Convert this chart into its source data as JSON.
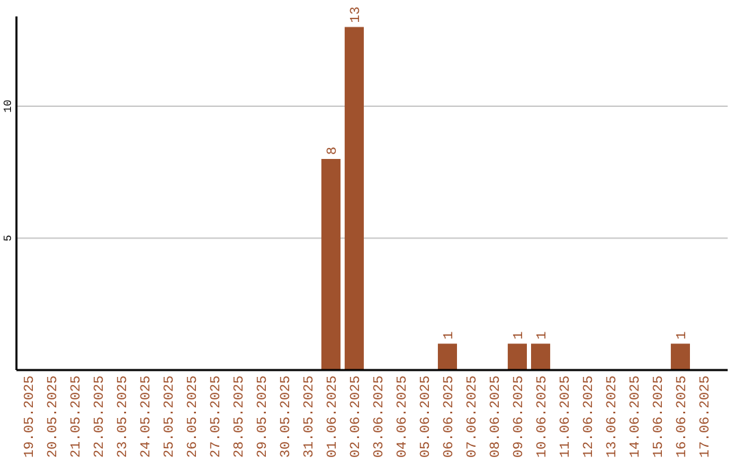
{
  "chart_data": {
    "type": "bar",
    "categories": [
      "19.05.2025",
      "20.05.2025",
      "21.05.2025",
      "22.05.2025",
      "23.05.2025",
      "24.05.2025",
      "25.05.2025",
      "26.05.2025",
      "27.05.2025",
      "28.05.2025",
      "29.05.2025",
      "30.05.2025",
      "31.05.2025",
      "01.06.2025",
      "02.06.2025",
      "03.06.2025",
      "04.06.2025",
      "05.06.2025",
      "06.06.2025",
      "07.06.2025",
      "08.06.2025",
      "09.06.2025",
      "10.06.2025",
      "11.06.2025",
      "12.06.2025",
      "13.06.2025",
      "14.06.2025",
      "15.06.2025",
      "16.06.2025",
      "17.06.2025"
    ],
    "values": [
      0,
      0,
      0,
      0,
      0,
      0,
      0,
      0,
      0,
      0,
      0,
      0,
      0,
      8,
      13,
      0,
      0,
      0,
      1,
      0,
      0,
      1,
      1,
      0,
      0,
      0,
      0,
      0,
      1,
      0
    ],
    "value_labels": [
      null,
      null,
      null,
      null,
      null,
      null,
      null,
      null,
      null,
      null,
      null,
      null,
      null,
      "8",
      "13",
      null,
      null,
      null,
      "1",
      null,
      null,
      "1",
      "1",
      null,
      null,
      null,
      null,
      null,
      "1",
      null
    ],
    "color": "#a0522d",
    "ylim": [
      0,
      13.4
    ],
    "yticks": [
      5,
      10
    ],
    "grid": "y"
  }
}
